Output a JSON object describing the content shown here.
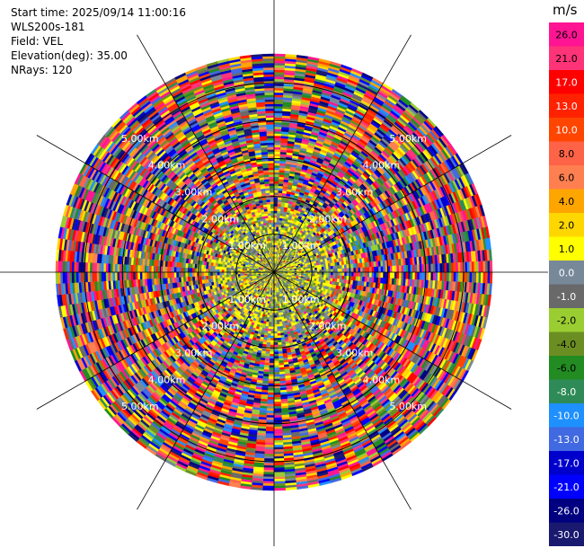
{
  "info": {
    "start_time": "Start time: 2025/09/14 11:00:16",
    "instrument": "WLS200s-181",
    "field": "Field: VEL",
    "elevation": "Elevation(deg): 35.00",
    "nrays": "NRays: 120"
  },
  "colorbar": {
    "unit": "m/s",
    "ticks": [
      "26.0",
      "21.0",
      "17.0",
      "13.0",
      "10.0",
      "8.0",
      "6.0",
      "4.0",
      "2.0",
      "1.0",
      "0.0",
      "-1.0",
      "-2.0",
      "-4.0",
      "-6.0",
      "-8.0",
      "-10.0",
      "-13.0",
      "-17.0",
      "-21.0",
      "-26.0",
      "-30.0"
    ],
    "colors": [
      "#ff1493",
      "#ff3377",
      "#ff0000",
      "#ff2200",
      "#ff4500",
      "#ff6347",
      "#ff7f50",
      "#ffa500",
      "#ffd700",
      "#ffff00",
      "#778899",
      "#696969",
      "#9acd32",
      "#6b8e23",
      "#228b22",
      "#2e8b57",
      "#1e90ff",
      "#4169e1",
      "#0000cd",
      "#0000ff",
      "#000080",
      "#191970"
    ]
  },
  "chart_data": {
    "type": "heatmap",
    "projection": "polar PPI",
    "field": "VEL",
    "units": "m/s",
    "nrays": 120,
    "elevation_deg": 35.0,
    "range_rings_km": [
      1.0,
      2.0,
      3.0,
      4.0,
      5.0
    ],
    "ring_labels": [
      "1.00km",
      "2.00km",
      "3.00km",
      "4.00km",
      "5.00km"
    ],
    "max_range_km": 5.6,
    "value_range": [
      -30.0,
      26.0
    ],
    "near_field_dominant_values": [
      0.0,
      -1.0,
      1.0,
      -2.0
    ],
    "far_field_pattern": "highly variable, noise-like across full scale"
  }
}
